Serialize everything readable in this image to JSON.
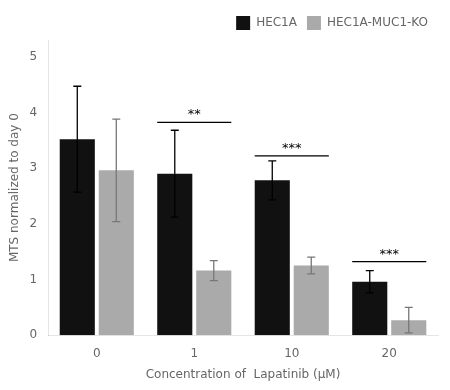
{
  "chart_data": {
    "type": "bar",
    "categories": [
      "0",
      "1",
      "10",
      "20"
    ],
    "series": [
      {
        "name": "HEC1A",
        "color": "#111111",
        "values": [
          3.52,
          2.9,
          2.78,
          0.96
        ],
        "errors": [
          0.95,
          0.78,
          0.35,
          0.2
        ]
      },
      {
        "name": "HEC1A-MUC1-KO",
        "color": "#aaaaaa",
        "values": [
          2.96,
          1.16,
          1.25,
          0.27
        ],
        "errors": [
          0.92,
          0.18,
          0.15,
          0.23
        ]
      }
    ],
    "xlabel": "Concentration of  Lapatinib (μM)",
    "ylabel": "MTS normalized to day 0",
    "ylim": [
      0,
      5.3
    ],
    "yticks": [
      0,
      1,
      2,
      3,
      4,
      5
    ],
    "grid": false,
    "legend": "upper right",
    "annotations": [
      {
        "category": "1",
        "text": "**",
        "y": 3.82
      },
      {
        "category": "10",
        "text": "***",
        "y": 3.22
      },
      {
        "category": "20",
        "text": "***",
        "y": 1.32
      }
    ]
  }
}
